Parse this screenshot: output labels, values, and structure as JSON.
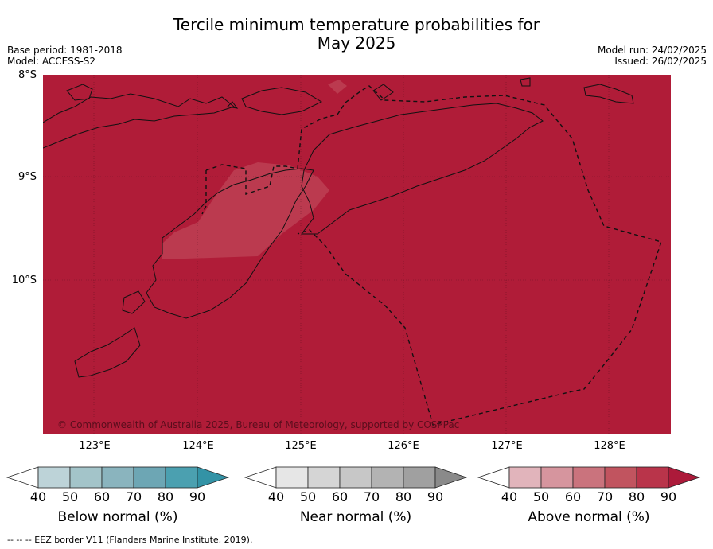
{
  "header": {
    "title_line1": "Tercile minimum temperature probabilities for",
    "title_line2": "May 2025",
    "base_period": "Base period: 1981-2018",
    "model": "Model: ACCESS-S2",
    "model_run": "Model run: 24/02/2025",
    "issued": "Issued: 26/02/2025"
  },
  "map": {
    "lat_labels": [
      "8°S",
      "9°S",
      "10°S"
    ],
    "lon_labels": [
      "123°E",
      "124°E",
      "125°E",
      "126°E",
      "127°E",
      "128°E"
    ],
    "fill_color": "#b01c38",
    "copyright": "© Commonwealth of Australia 2025, Bureau of Meteorology, supported by COSPPac",
    "dominant_category": "Above normal",
    "dominant_probability_bin": "90"
  },
  "legend": {
    "ticks": [
      "40",
      "50",
      "60",
      "70",
      "80",
      "90"
    ],
    "below": {
      "label": "Below normal (%)",
      "colors": [
        "#bdd3d8",
        "#a3c4c9",
        "#8ab4be",
        "#6da6b4",
        "#4ba0b0",
        "#3393a6"
      ]
    },
    "near": {
      "label": "Near normal (%)",
      "colors": [
        "#e6e6e6",
        "#d5d5d5",
        "#c7c7c7",
        "#b3b3b3",
        "#a0a0a0",
        "#8a8a8a"
      ]
    },
    "above": {
      "label": "Above normal (%)",
      "colors": [
        "#e1b4bb",
        "#d6959e",
        "#ca737d",
        "#c1545f",
        "#b9344a",
        "#ac1a3a"
      ]
    }
  },
  "footer": {
    "eez_note": "--  --  -- EEZ border V11 (Flanders Marine Institute, 2019)."
  }
}
